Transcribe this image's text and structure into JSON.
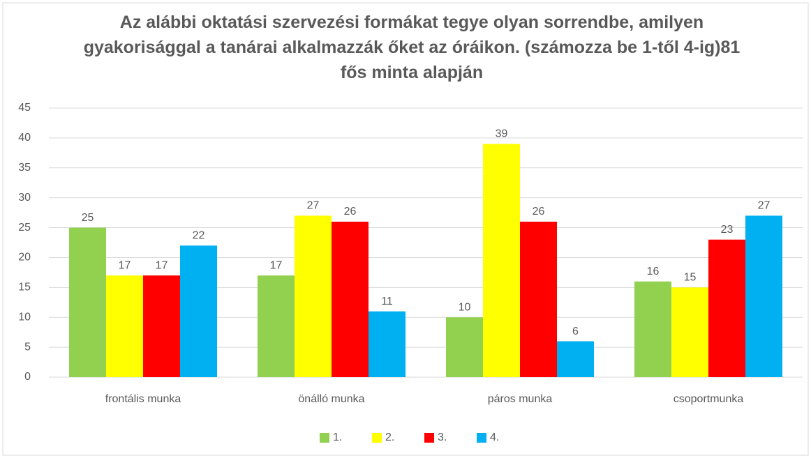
{
  "chart_data": {
    "type": "bar",
    "title": "Az alábbi oktatási szervezési formákat tegye olyan sorrendbe, amilyen gyakorisággal a tanárai  alkalmazzák őket az óráikon. (számozza be 1-től 4-ig)81 fős minta alapján",
    "categories": [
      "frontális munka",
      "önálló munka",
      "páros munka",
      "csoportmunka"
    ],
    "series": [
      {
        "name": "1.",
        "color": "#92d050",
        "values": [
          25,
          17,
          10,
          16
        ]
      },
      {
        "name": "2.",
        "color": "#ffff00",
        "values": [
          17,
          27,
          39,
          15
        ]
      },
      {
        "name": "3.",
        "color": "#ff0000",
        "values": [
          17,
          26,
          26,
          23
        ]
      },
      {
        "name": "4.",
        "color": "#00b0f0",
        "values": [
          22,
          11,
          6,
          27
        ]
      }
    ],
    "ylim": [
      0,
      45
    ],
    "yticks": [
      0,
      5,
      10,
      15,
      20,
      25,
      30,
      35,
      40,
      45
    ],
    "grid": true,
    "legend": "bottom",
    "data_labels": true
  }
}
